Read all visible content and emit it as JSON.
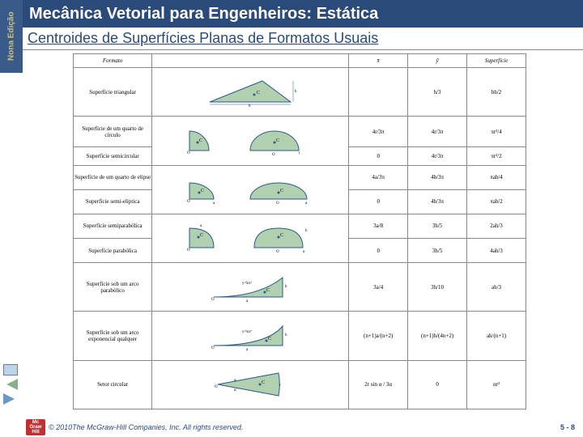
{
  "edition": "Nona\nEdição",
  "title": "Mecânica Vetorial para Engenheiros: Estática",
  "subtitle": "Centroides de Superfícies Planas de Formatos Usuais",
  "headers": {
    "shape_label": "Formato",
    "shape_fig": "",
    "xbar": "x̄",
    "ybar": "ȳ",
    "area": "Superfície"
  },
  "rows": [
    {
      "label": "Superfície triangular",
      "xbar": "",
      "ybar": "h/3",
      "area": "bh/2",
      "shape": "triangle"
    },
    {
      "label": "Superfície de um quarto de círculo",
      "xbar": "4r/3π",
      "ybar": "4r/3π",
      "area": "πr²/4",
      "shape": "quarter_circle",
      "shared": "next"
    },
    {
      "label": "Superfície semicircular",
      "xbar": "0",
      "ybar": "4r/3π",
      "area": "πr²/2",
      "shape": "semicircle"
    },
    {
      "label": "Superfície de um quarto de elipse",
      "xbar": "4a/3π",
      "ybar": "4b/3π",
      "area": "πab/4",
      "shape": "quarter_ellipse",
      "shared": "next"
    },
    {
      "label": "Superfície semi-elíptica",
      "xbar": "0",
      "ybar": "4b/3π",
      "area": "πab/2",
      "shape": "semiellipse"
    },
    {
      "label": "Superfície semiparabólica",
      "xbar": "3a/8",
      "ybar": "3h/5",
      "area": "2ah/3",
      "shape": "semiparabola",
      "shared": "next"
    },
    {
      "label": "Superfície parabólica",
      "xbar": "0",
      "ybar": "3h/5",
      "area": "4ah/3",
      "shape": "parabola"
    },
    {
      "label": "Superfície sob um arco parabólico",
      "xbar": "3a/4",
      "ybar": "3h/10",
      "area": "ah/3",
      "shape": "spandrel"
    },
    {
      "label": "Superfície sob um arco exponencial qualquer",
      "xbar": "(n+1)a/(n+2)",
      "ybar": "(n+1)h/(4n+2)",
      "area": "ah/(n+1)",
      "shape": "general_spandrel"
    },
    {
      "label": "Setor circular",
      "xbar": "2r sin α / 3α",
      "ybar": "0",
      "area": "αr²",
      "shape": "sector"
    }
  ],
  "colors": {
    "fill": "#b0d0b0",
    "stroke": "#2a5a8a",
    "centroid": "#2a5a8a"
  },
  "footer": {
    "copyright": "© 2010The McGraw-Hill Companies, Inc. All rights reserved.",
    "page": "5 - 8",
    "logo": "Mc\nGraw\nHill"
  }
}
